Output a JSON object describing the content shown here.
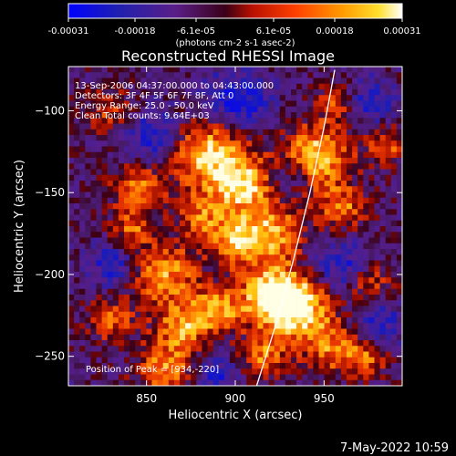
{
  "chart_data": {
    "type": "heatmap",
    "title": "Reconstructed RHESSI Image",
    "xlabel": "Heliocentric X (arcsec)",
    "ylabel": "Heliocentric Y (arcsec)",
    "xlim": [
      806,
      994
    ],
    "ylim": [
      -268,
      -73
    ],
    "x_ticks": [
      850,
      900,
      950
    ],
    "y_ticks": [
      -100,
      -150,
      -200,
      -250
    ],
    "colorbar": {
      "ticks": [
        "-0.00031",
        "-0.00018",
        "-6.1e-05",
        "6.1e-05",
        "0.00018",
        "0.00031"
      ],
      "unit_label": "(photons cm-2 s-1 asec-2)",
      "range": [
        -0.00031,
        0.00031
      ]
    },
    "annotations": {
      "time": "13-Sep-2006 04:37:00.000 to 04:43:00.000",
      "detectors": "Detectors: 3F 4F 5F 6F 7F 8F, Att 0",
      "energy": "Energy Range: 25.0 - 50.0 keV",
      "clean": "Clean    Total counts: 9.64E+03",
      "peak": "Position of Peak = [934,-220]"
    },
    "peak": [
      934,
      -220
    ],
    "limb": [
      [
        912,
        -268
      ],
      [
        923,
        -230
      ],
      [
        933,
        -190
      ],
      [
        942,
        -150
      ],
      [
        950,
        -110
      ],
      [
        956,
        -75
      ]
    ],
    "hot_spots": [
      [
        885,
        -125,
        16,
        0.95
      ],
      [
        905,
        -147,
        12,
        0.85
      ],
      [
        945,
        -128,
        14,
        0.9
      ],
      [
        922,
        -175,
        12,
        0.75
      ],
      [
        900,
        -180,
        10,
        0.8
      ],
      [
        860,
        -200,
        14,
        0.7
      ],
      [
        845,
        -147,
        10,
        0.7
      ],
      [
        934,
        -220,
        14,
        1.0
      ],
      [
        920,
        -212,
        12,
        0.85
      ],
      [
        955,
        -245,
        12,
        0.6
      ],
      [
        862,
        -258,
        12,
        0.7
      ],
      [
        830,
        -228,
        9,
        0.55
      ],
      [
        870,
        -232,
        10,
        0.65
      ],
      [
        975,
        -205,
        9,
        0.55
      ],
      [
        960,
        -160,
        10,
        0.6
      ],
      [
        985,
        -120,
        8,
        0.55
      ],
      [
        830,
        -100,
        10,
        0.45
      ],
      [
        890,
        -222,
        10,
        0.7
      ],
      [
        975,
        -250,
        8,
        0.5
      ],
      [
        842,
        -172,
        8,
        0.5
      ],
      [
        915,
        -250,
        9,
        0.6
      ],
      [
        958,
        -95,
        8,
        0.5
      ],
      [
        880,
        -165,
        9,
        0.55
      ]
    ],
    "cold_spots": [
      [
        900,
        -96,
        14,
        0.6
      ],
      [
        855,
        -115,
        12,
        0.55
      ],
      [
        960,
        -195,
        12,
        0.5
      ],
      [
        830,
        -195,
        9,
        0.5
      ],
      [
        888,
        -262,
        10,
        0.45
      ],
      [
        975,
        -95,
        10,
        0.45
      ],
      [
        930,
        -140,
        9,
        0.4
      ],
      [
        980,
        -230,
        10,
        0.45
      ]
    ]
  },
  "footer": {
    "date": "7-May-2022 10:59"
  }
}
